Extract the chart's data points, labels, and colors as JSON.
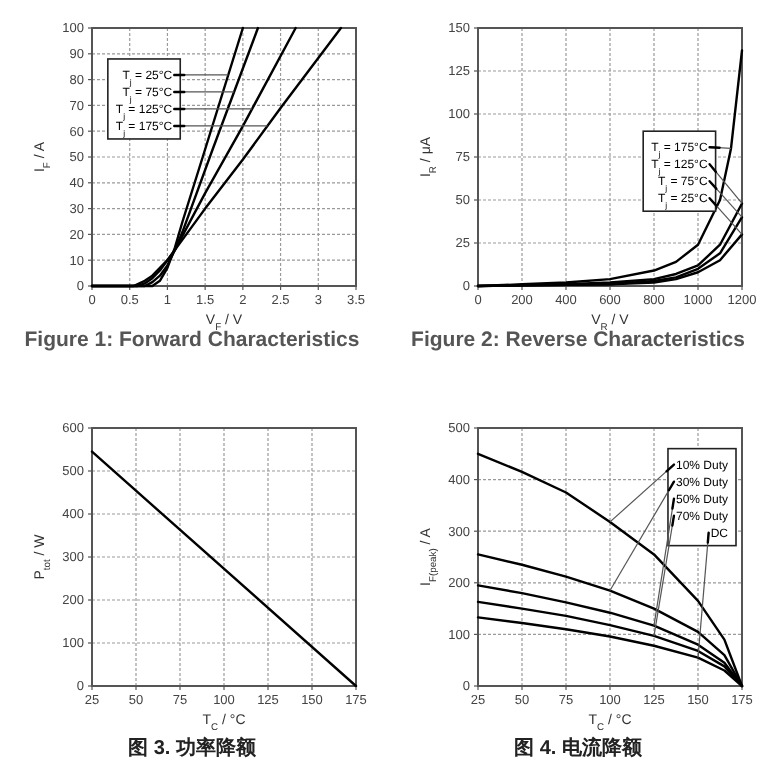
{
  "chart_data": [
    {
      "type": "line",
      "title": "Figure 1: Forward Characteristics",
      "xlabel": "V$_{F}$ / V",
      "ylabel": "I$_{F}$ / A",
      "xlim": [
        0,
        3.5
      ],
      "ylim": [
        0,
        100
      ],
      "xticks": [
        0,
        0.5,
        1,
        1.5,
        2,
        2.5,
        3,
        3.5
      ],
      "yticks": [
        0,
        10,
        20,
        30,
        40,
        50,
        60,
        70,
        80,
        90,
        100
      ],
      "grid": true,
      "legend": "top left",
      "series": [
        {
          "name": "T$_{j}$ = 25°C",
          "color": "#000000",
          "x": [
            0,
            0.8,
            0.9,
            1.0,
            1.1,
            1.2,
            1.5,
            2.0
          ],
          "values": [
            0,
            0,
            2,
            7,
            15,
            25,
            53,
            100
          ]
        },
        {
          "name": "T$_{j}$ = 75°C",
          "color": "#000000",
          "x": [
            0,
            0.7,
            0.8,
            0.9,
            1.0,
            1.1,
            1.2,
            1.6,
            2.2
          ],
          "values": [
            0,
            0,
            1.5,
            4,
            8,
            14,
            21,
            53,
            100
          ]
        },
        {
          "name": "T$_{j}$ = 125°C",
          "color": "#000000",
          "x": [
            0,
            0.6,
            0.7,
            0.8,
            0.9,
            1.0,
            1.1,
            1.5,
            2.0,
            2.7
          ],
          "values": [
            0,
            0,
            1,
            3,
            6,
            10,
            14,
            36,
            62,
            100
          ]
        },
        {
          "name": "T$_{j}$ = 175°C",
          "color": "#000000",
          "x": [
            0,
            0.55,
            0.7,
            0.8,
            0.9,
            1.0,
            1.1,
            1.5,
            2.0,
            2.5,
            3.3
          ],
          "values": [
            0,
            0,
            2,
            4,
            7,
            10,
            14,
            30,
            49,
            69,
            100
          ]
        }
      ]
    },
    {
      "type": "line",
      "title": "Figure 2: Reverse Characteristics",
      "xlabel": "V$_{R}$ / V",
      "ylabel": "I$_{R}$ / μA",
      "xlim": [
        0,
        1200
      ],
      "ylim": [
        0,
        150
      ],
      "xticks": [
        0,
        200,
        400,
        600,
        800,
        1000,
        1200
      ],
      "yticks": [
        0,
        25,
        50,
        75,
        100,
        125,
        150
      ],
      "grid": true,
      "legend": "right",
      "series": [
        {
          "name": "T$_{j}$ = 175°C",
          "color": "#000000",
          "x": [
            0,
            200,
            400,
            600,
            800,
            900,
            1000,
            1100,
            1150,
            1200
          ],
          "values": [
            0,
            1,
            2,
            4,
            9,
            14,
            24,
            50,
            80,
            137
          ]
        },
        {
          "name": "T$_{j}$ = 125°C",
          "color": "#000000",
          "x": [
            0,
            400,
            600,
            800,
            900,
            1000,
            1100,
            1200
          ],
          "values": [
            0,
            1,
            2,
            4,
            7,
            12,
            24,
            48
          ]
        },
        {
          "name": "T$_{j}$ = 75°C",
          "color": "#000000",
          "x": [
            0,
            600,
            800,
            900,
            1000,
            1100,
            1200
          ],
          "values": [
            0,
            1,
            3,
            5,
            10,
            19,
            40
          ]
        },
        {
          "name": "T$_{j}$ = 25°C",
          "color": "#000000",
          "x": [
            0,
            600,
            800,
            900,
            1000,
            1100,
            1200
          ],
          "values": [
            0,
            1,
            2,
            4,
            8,
            15,
            30
          ]
        }
      ]
    },
    {
      "type": "line",
      "title": "图 3. 功率降额",
      "xlabel": "T$_{C}$ / °C",
      "ylabel": "P$_{tot}$ / W",
      "xlim": [
        25,
        175
      ],
      "ylim": [
        0,
        600
      ],
      "xticks": [
        25,
        50,
        75,
        100,
        125,
        150,
        175
      ],
      "yticks": [
        0,
        100,
        200,
        300,
        400,
        500,
        600
      ],
      "grid": true,
      "series": [
        {
          "color": "#000000",
          "x": [
            25,
            175
          ],
          "values": [
            545,
            0
          ]
        }
      ]
    },
    {
      "type": "line",
      "title": "图 4. 电流降额",
      "xlabel": "T$_{C}$ / °C",
      "ylabel": "I$_{F(peak)}$ / A",
      "xlim": [
        25,
        175
      ],
      "ylim": [
        0,
        500
      ],
      "xticks": [
        25,
        50,
        75,
        100,
        125,
        150,
        175
      ],
      "yticks": [
        0,
        100,
        200,
        300,
        400,
        500
      ],
      "grid": true,
      "legend": "top right",
      "series": [
        {
          "name": "10% Duty",
          "color": "#000000",
          "x": [
            25,
            50,
            75,
            100,
            125,
            150,
            165,
            175
          ],
          "values": [
            450,
            415,
            375,
            318,
            255,
            165,
            90,
            0
          ]
        },
        {
          "name": "30% Duty",
          "color": "#000000",
          "x": [
            25,
            50,
            75,
            100,
            125,
            150,
            165,
            175
          ],
          "values": [
            255,
            235,
            212,
            185,
            150,
            105,
            60,
            0
          ]
        },
        {
          "name": "50% Duty",
          "color": "#000000",
          "x": [
            25,
            50,
            75,
            100,
            125,
            150,
            165,
            175
          ],
          "values": [
            195,
            180,
            162,
            142,
            117,
            80,
            45,
            0
          ]
        },
        {
          "name": "70% Duty",
          "color": "#000000",
          "x": [
            25,
            50,
            75,
            100,
            125,
            150,
            165,
            175
          ],
          "values": [
            163,
            150,
            136,
            118,
            97,
            68,
            38,
            0
          ]
        },
        {
          "name": "DC",
          "color": "#000000",
          "x": [
            25,
            50,
            75,
            100,
            125,
            150,
            165,
            175
          ],
          "values": [
            133,
            122,
            110,
            96,
            78,
            55,
            30,
            0
          ]
        }
      ]
    }
  ]
}
